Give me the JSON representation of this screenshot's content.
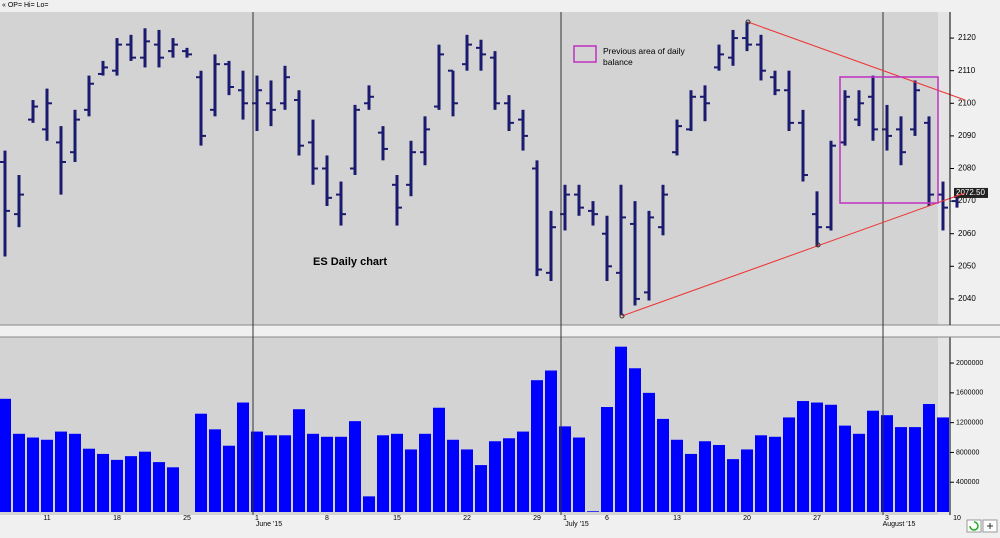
{
  "header": "« OP= Hi= Lo=",
  "chart_data": [
    {
      "type": "ohlc",
      "title": "ES Daily chart",
      "legend_label": "Previous area of daily balance",
      "last_price_label": "2072.50",
      "last_price": 2072.5,
      "color": "#1a1a6e",
      "open": [
        2082,
        2066,
        2095,
        2092,
        2088,
        2085,
        2098,
        2109,
        2110,
        2118,
        2114,
        2118,
        2116,
        2116,
        2108,
        2098,
        2112,
        2104,
        2100,
        2100,
        2100,
        2101,
        2088,
        2080,
        2072,
        2080,
        2100,
        2091,
        2075,
        2075,
        2085,
        2099,
        2110,
        2112,
        2117,
        2114,
        2100,
        2095,
        2080,
        2048,
        2066,
        2072,
        2067,
        2060,
        2048,
        2063,
        2042,
        2062,
        2085,
        2092,
        2102,
        2111,
        2114,
        2120,
        2118,
        2108,
        2104,
        2094,
        2066,
        2062,
        2088,
        2095,
        2102,
        2092,
        2092,
        2092,
        2094,
        2072,
        2070
      ],
      "high": [
        2085.5,
        2078,
        2101,
        2104.5,
        2093,
        2098,
        2108.5,
        2113,
        2120,
        2121,
        2123,
        2122.5,
        2120,
        2117,
        2110,
        2115,
        2113,
        2110,
        2108.5,
        2107,
        2111.5,
        2104,
        2095,
        2084,
        2076,
        2099.5,
        2105.5,
        2093,
        2078,
        2088.5,
        2096,
        2118,
        2110,
        2121,
        2119.5,
        2116,
        2102.5,
        2098,
        2082.5,
        2067,
        2075,
        2075,
        2070,
        2065.5,
        2075,
        2070,
        2067,
        2075,
        2095,
        2104,
        2105.5,
        2118,
        2122.5,
        2125,
        2121,
        2110,
        2110,
        2098,
        2073,
        2088.5,
        2104,
        2104,
        2108.5,
        2099.5,
        2096,
        2107,
        2096,
        2076,
        2074
      ],
      "low": [
        2053,
        2062,
        2094,
        2088.5,
        2072,
        2082,
        2096,
        2108.5,
        2108.5,
        2113,
        2111,
        2111,
        2114,
        2114,
        2087,
        2096,
        2102.5,
        2095,
        2091.5,
        2093,
        2098,
        2084,
        2075,
        2068.5,
        2062.5,
        2078,
        2098,
        2082.5,
        2062.5,
        2071.5,
        2081,
        2098,
        2096,
        2110,
        2110,
        2098,
        2091.5,
        2085.5,
        2047,
        2045.5,
        2061,
        2065.5,
        2062.5,
        2045.5,
        2035,
        2038,
        2039.5,
        2059.5,
        2084,
        2091.5,
        2094.5,
        2110,
        2111.5,
        2116,
        2107,
        2102.5,
        2091.5,
        2076,
        2056,
        2061,
        2087,
        2093,
        2088.5,
        2085.5,
        2081,
        2090,
        2068.5,
        2061,
        2068
      ],
      "close": [
        2067,
        2072,
        2099,
        2100,
        2082,
        2095,
        2106,
        2111,
        2118,
        2114,
        2119,
        2114,
        2118,
        2115,
        2090,
        2112,
        2105,
        2100,
        2104,
        2098,
        2108,
        2087,
        2080,
        2071,
        2066,
        2098,
        2102,
        2086,
        2068,
        2085,
        2092,
        2115,
        2100,
        2118,
        2115,
        2100,
        2094,
        2090,
        2049,
        2062,
        2072,
        2068,
        2066,
        2050,
        2065,
        2040,
        2065,
        2072,
        2093,
        2102,
        2100,
        2115,
        2120,
        2118,
        2110,
        2104,
        2094,
        2078,
        2062,
        2087,
        2102,
        2100,
        2092,
        2090,
        2085,
        2104,
        2072,
        2068,
        2072.5
      ],
      "ylim": [
        2032,
        2128
      ],
      "yticks": [
        2040,
        2050,
        2060,
        2070,
        2080,
        2090,
        2100,
        2110,
        2120
      ]
    },
    {
      "type": "bar",
      "color": "#0000ff",
      "categories": [
        null,
        null,
        null,
        "11",
        null,
        null,
        null,
        null,
        "18",
        null,
        null,
        null,
        null,
        "25",
        null,
        null,
        null,
        null,
        "1",
        null,
        null,
        null,
        null,
        "8",
        null,
        null,
        null,
        null,
        "15",
        null,
        null,
        null,
        null,
        "22",
        null,
        null,
        null,
        null,
        "29",
        null,
        "1",
        null,
        null,
        "6",
        null,
        null,
        null,
        null,
        "13",
        null,
        null,
        null,
        null,
        "20",
        null,
        null,
        null,
        null,
        "27",
        null,
        null,
        null,
        null,
        "3",
        null,
        null,
        null,
        null,
        "10"
      ],
      "sub_labels": [
        null,
        null,
        null,
        null,
        null,
        null,
        null,
        null,
        null,
        null,
        null,
        null,
        null,
        null,
        null,
        null,
        null,
        null,
        "June '15",
        null,
        null,
        null,
        null,
        null,
        null,
        null,
        null,
        null,
        null,
        null,
        null,
        null,
        null,
        null,
        null,
        null,
        null,
        null,
        null,
        null,
        "July '15",
        null,
        null,
        null,
        null,
        null,
        null,
        null,
        null,
        null,
        null,
        null,
        null,
        null,
        null,
        null,
        null,
        null,
        null,
        null,
        null,
        null,
        null,
        "August '15",
        null,
        null,
        null,
        null,
        null
      ],
      "values": [
        1520000,
        1050000,
        1000000,
        970000,
        1080000,
        1050000,
        850000,
        780000,
        700000,
        750000,
        810000,
        670000,
        600000,
        null,
        1320000,
        1110000,
        890000,
        1470000,
        1080000,
        1030000,
        1030000,
        1380000,
        1050000,
        1010000,
        1010000,
        1220000,
        210000,
        1030000,
        1050000,
        840000,
        1050000,
        1400000,
        970000,
        840000,
        630000,
        950000,
        990000,
        1080000,
        1770000,
        1900000,
        1150000,
        1000000,
        10000,
        1410000,
        2220000,
        1930000,
        1600000,
        1250000,
        970000,
        780000,
        950000,
        900000,
        710000,
        840000,
        1030000,
        1010000,
        1270000,
        1490000,
        1470000,
        1440000,
        1160000,
        1050000,
        1360000,
        1300000,
        1140000,
        1140000,
        1450000,
        1270000,
        null
      ],
      "ylim": [
        0,
        2350000
      ],
      "yticks": [
        400000,
        800000,
        1200000,
        1600000,
        2000000
      ]
    }
  ]
}
